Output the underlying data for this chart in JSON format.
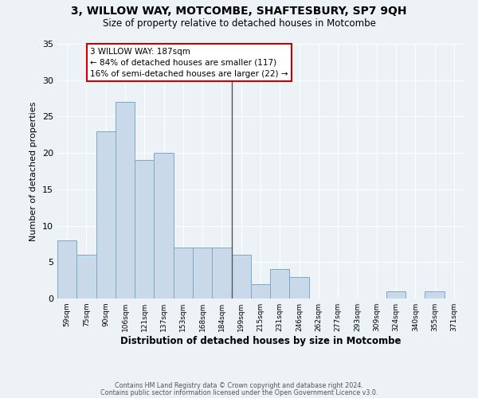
{
  "title": "3, WILLOW WAY, MOTCOMBE, SHAFTESBURY, SP7 9QH",
  "subtitle": "Size of property relative to detached houses in Motcombe",
  "xlabel": "Distribution of detached houses by size in Motcombe",
  "ylabel": "Number of detached properties",
  "bar_labels": [
    "59sqm",
    "75sqm",
    "90sqm",
    "106sqm",
    "121sqm",
    "137sqm",
    "153sqm",
    "168sqm",
    "184sqm",
    "199sqm",
    "215sqm",
    "231sqm",
    "246sqm",
    "262sqm",
    "277sqm",
    "293sqm",
    "309sqm",
    "324sqm",
    "340sqm",
    "355sqm",
    "371sqm"
  ],
  "bar_values": [
    8,
    6,
    23,
    27,
    19,
    20,
    7,
    7,
    7,
    6,
    2,
    4,
    3,
    0,
    0,
    0,
    0,
    1,
    0,
    1,
    0
  ],
  "bar_color": "#c9d9ea",
  "bar_edge_color": "#7aaac8",
  "ylim": [
    0,
    35
  ],
  "yticks": [
    0,
    5,
    10,
    15,
    20,
    25,
    30,
    35
  ],
  "vline_x_index": 8.5,
  "annotation_title": "3 WILLOW WAY: 187sqm",
  "annotation_line1": "← 84% of detached houses are smaller (117)",
  "annotation_line2": "16% of semi-detached houses are larger (22) →",
  "annotation_box_facecolor": "#ffffff",
  "annotation_box_edgecolor": "#cc0000",
  "vline_color": "#555555",
  "background_color": "#edf2f7",
  "grid_color": "#ffffff",
  "footer1": "Contains HM Land Registry data © Crown copyright and database right 2024.",
  "footer2": "Contains public sector information licensed under the Open Government Licence v3.0."
}
